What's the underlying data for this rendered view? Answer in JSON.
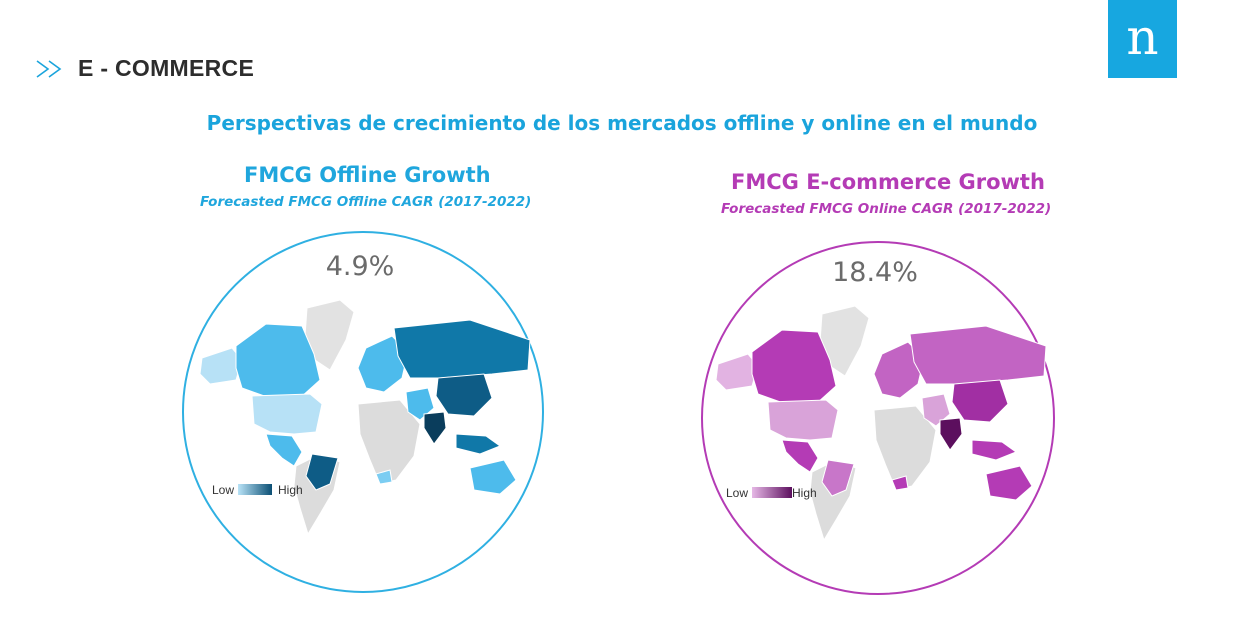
{
  "header": {
    "section_title": "E - COMMERCE",
    "logo_letter": "n"
  },
  "subtitle": "Perspectivas de crecimiento de los mercados offline y online en el mundo",
  "colors": {
    "offline_accent": "#1fa6dd",
    "online_accent": "#b43bb5",
    "logo_bg": "#17a7e0"
  },
  "maps": [
    {
      "title": "FMCG Offline Growth",
      "subtitle": "Forecasted FMCG Offline CAGR (2017-2022)",
      "cagr": "4.9%",
      "legend_low": "Low",
      "legend_high": "High",
      "scale_low_color": "#b9e3f7",
      "scale_high_color": "#0b4f74"
    },
    {
      "title": "FMCG E-commerce Growth",
      "subtitle": "Forecasted FMCG Online CAGR (2017-2022)",
      "cagr": "18.4%",
      "legend_low": "Low",
      "legend_high": "High",
      "scale_low_color": "#e6b8e6",
      "scale_high_color": "#5c0f5e"
    }
  ]
}
